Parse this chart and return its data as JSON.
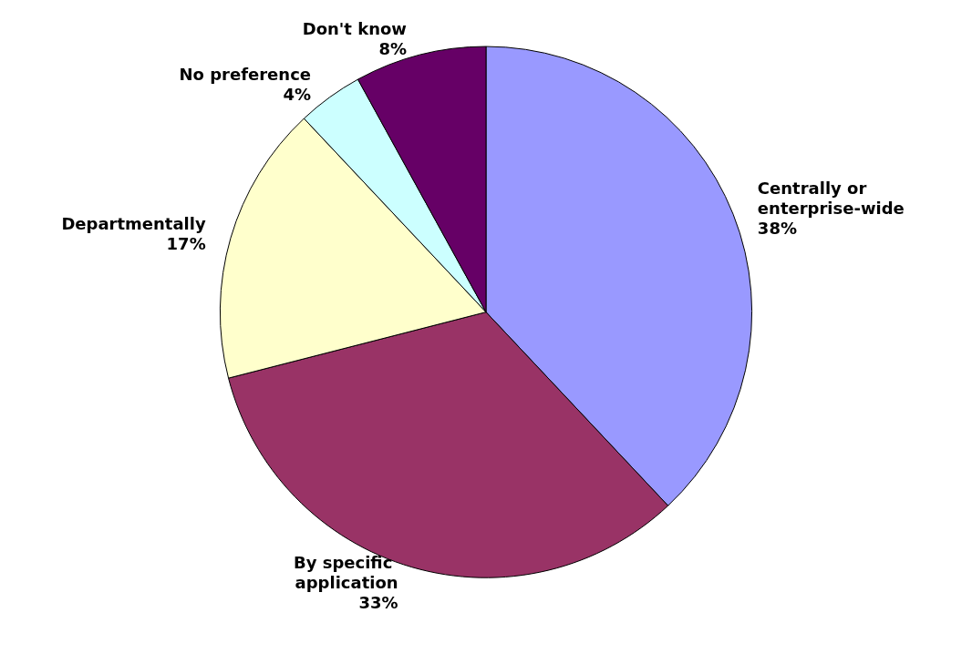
{
  "chart_data": {
    "type": "pie",
    "categories": [
      "Centrally or enterprise-wide",
      "By specific application",
      "Departmentally",
      "No preference",
      "Don't know"
    ],
    "values": [
      38,
      33,
      17,
      4,
      8
    ],
    "colors": [
      "#9999ff",
      "#993366",
      "#ffffcc",
      "#ccffff",
      "#660066"
    ],
    "value_labels": [
      "38%",
      "33%",
      "17%",
      "4%",
      "8%"
    ],
    "legend": false
  }
}
